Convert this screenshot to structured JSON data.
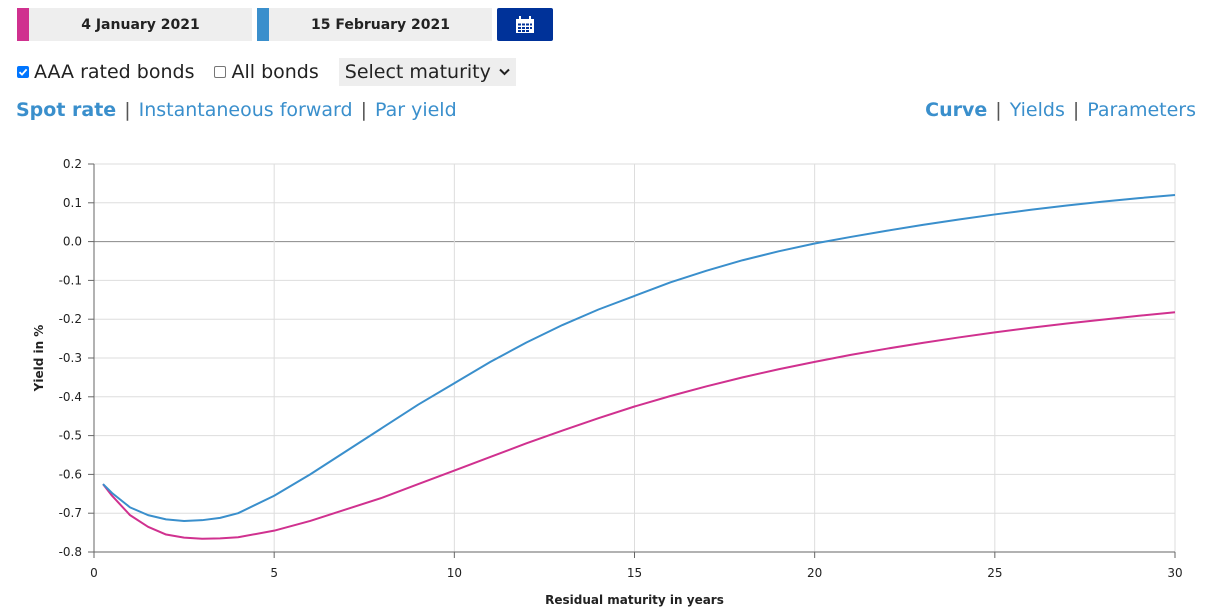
{
  "dates": {
    "first": {
      "label": "4 January 2021",
      "color": "#d0318f"
    },
    "second": {
      "label": "15 February 2021",
      "color": "#3a8fcc"
    }
  },
  "calendar_button": {
    "icon": "calendar-icon",
    "color": "#003299"
  },
  "filters": {
    "aaa": {
      "label": "AAA rated bonds",
      "checked": true
    },
    "all": {
      "label": "All bonds",
      "checked": false
    },
    "maturity_select": {
      "selected": "Select maturity"
    }
  },
  "nav_left": {
    "spot": "Spot rate",
    "forward": "Instantaneous forward",
    "par": "Par yield",
    "separator": "|"
  },
  "nav_right": {
    "curve": "Curve",
    "yields": "Yields",
    "parameters": "Parameters",
    "separator": "|"
  },
  "chart_data": {
    "type": "line",
    "xlabel": "Residual maturity in years",
    "ylabel": "Yield in %",
    "xlim": [
      0,
      30
    ],
    "ylim": [
      -0.8,
      0.2
    ],
    "x_ticks": [
      "0",
      "5",
      "10",
      "15",
      "20",
      "25",
      "30"
    ],
    "y_ticks": [
      "0.2",
      "0.1",
      "0.0",
      "-0.1",
      "-0.2",
      "-0.3",
      "-0.4",
      "-0.5",
      "-0.6",
      "-0.7",
      "-0.8"
    ],
    "grid": true,
    "series": [
      {
        "color": "#d0318f",
        "x": [
          0.25,
          0.5,
          1,
          1.5,
          2,
          2.5,
          3,
          3.5,
          4,
          5,
          6,
          7,
          8,
          9,
          10,
          11,
          12,
          13,
          14,
          15,
          16,
          17,
          18,
          19,
          20,
          21,
          22,
          23,
          24,
          25,
          26,
          27,
          28,
          29,
          30
        ],
        "y": [
          -0.625,
          -0.655,
          -0.705,
          -0.735,
          -0.755,
          -0.763,
          -0.766,
          -0.765,
          -0.762,
          -0.745,
          -0.72,
          -0.69,
          -0.66,
          -0.625,
          -0.59,
          -0.555,
          -0.52,
          -0.487,
          -0.455,
          -0.425,
          -0.398,
          -0.373,
          -0.35,
          -0.329,
          -0.31,
          -0.292,
          -0.276,
          -0.261,
          -0.247,
          -0.234,
          -0.222,
          -0.211,
          -0.201,
          -0.191,
          -0.182
        ]
      },
      {
        "color": "#3a8fcc",
        "x": [
          0.25,
          0.5,
          1,
          1.5,
          2,
          2.5,
          3,
          3.5,
          4,
          5,
          6,
          7,
          8,
          9,
          10,
          11,
          12,
          13,
          14,
          15,
          16,
          17,
          18,
          19,
          20,
          21,
          22,
          23,
          24,
          25,
          26,
          27,
          28,
          29,
          30
        ],
        "y": [
          -0.625,
          -0.648,
          -0.685,
          -0.705,
          -0.716,
          -0.72,
          -0.718,
          -0.712,
          -0.7,
          -0.655,
          -0.6,
          -0.54,
          -0.48,
          -0.42,
          -0.365,
          -0.31,
          -0.26,
          -0.215,
          -0.175,
          -0.14,
          -0.105,
          -0.075,
          -0.048,
          -0.025,
          -0.005,
          0.012,
          0.028,
          0.043,
          0.057,
          0.07,
          0.082,
          0.093,
          0.103,
          0.112,
          0.12
        ]
      }
    ]
  }
}
